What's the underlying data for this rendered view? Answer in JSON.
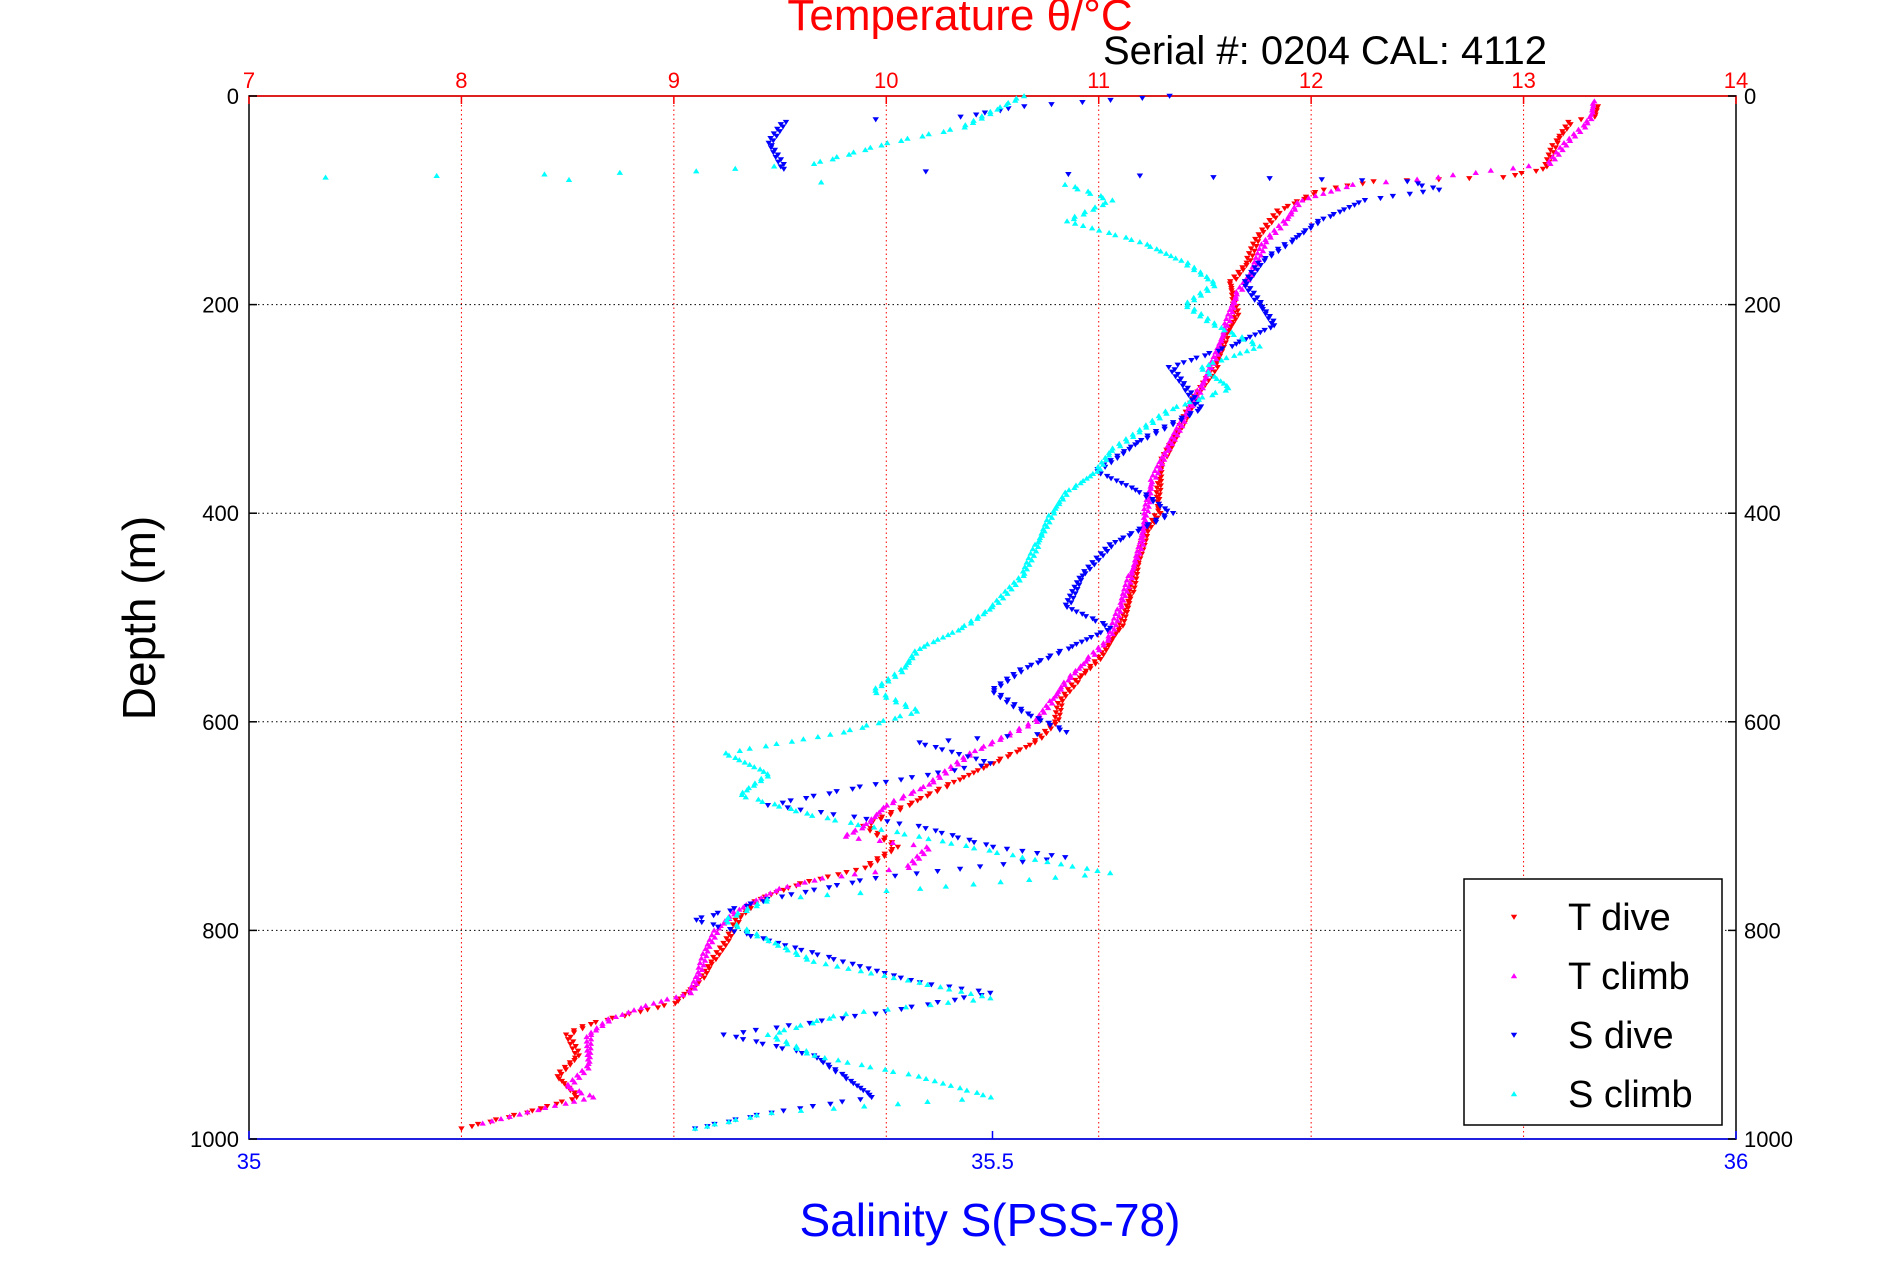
{
  "chart_data": {
    "type": "scatter",
    "title": "Temperature θ/°C",
    "subtitle": "Serial #: 0204  CAL: 4112",
    "ylabel": "Depth (m)",
    "xlabel": "Salinity S(PSS-78)",
    "temperature_axis": {
      "range": [
        7,
        14
      ],
      "ticks": [
        "7",
        "8",
        "9",
        "10",
        "11",
        "12",
        "13",
        "14"
      ],
      "color": "#ff0000",
      "position": "top"
    },
    "salinity_axis": {
      "range": [
        35,
        36
      ],
      "ticks": [
        "35",
        "35.5",
        "36"
      ],
      "color": "#0000ff",
      "position": "bottom"
    },
    "depth_axis": {
      "range": [
        0,
        1000
      ],
      "reversed": true,
      "ticks": [
        "0",
        "200",
        "400",
        "600",
        "800",
        "1000"
      ]
    },
    "grid": true,
    "legend_position": "bottom-right",
    "series": [
      {
        "name": "T dive",
        "axis": "temperature",
        "color": "#ff0000",
        "marker": "triangle-down",
        "points": [
          [
            13.35,
            10
          ],
          [
            13.33,
            20
          ],
          [
            13.22,
            25
          ],
          [
            13.15,
            45
          ],
          [
            13.1,
            70
          ],
          [
            12.9,
            78
          ],
          [
            12.6,
            80
          ],
          [
            12.3,
            82
          ],
          [
            12.05,
            90
          ],
          [
            11.85,
            110
          ],
          [
            11.75,
            135
          ],
          [
            11.7,
            160
          ],
          [
            11.62,
            180
          ],
          [
            11.65,
            210
          ],
          [
            11.6,
            230
          ],
          [
            11.55,
            260
          ],
          [
            11.45,
            290
          ],
          [
            11.38,
            320
          ],
          [
            11.3,
            350
          ],
          [
            11.28,
            380
          ],
          [
            11.28,
            400
          ],
          [
            11.22,
            420
          ],
          [
            11.18,
            450
          ],
          [
            11.15,
            480
          ],
          [
            11.1,
            510
          ],
          [
            11.0,
            540
          ],
          [
            10.9,
            560
          ],
          [
            10.82,
            580
          ],
          [
            10.8,
            600
          ],
          [
            10.7,
            620
          ],
          [
            10.5,
            640
          ],
          [
            10.3,
            660
          ],
          [
            10.1,
            680
          ],
          [
            9.9,
            700
          ],
          [
            10.05,
            720
          ],
          [
            9.9,
            740
          ],
          [
            9.6,
            755
          ],
          [
            9.4,
            770
          ],
          [
            9.3,
            790
          ],
          [
            9.25,
            810
          ],
          [
            9.18,
            830
          ],
          [
            9.12,
            850
          ],
          [
            9.0,
            870
          ],
          [
            8.8,
            880
          ],
          [
            8.6,
            890
          ],
          [
            8.5,
            900
          ],
          [
            8.55,
            920
          ],
          [
            8.45,
            940
          ],
          [
            8.55,
            960
          ],
          [
            8.3,
            975
          ],
          [
            8.0,
            990
          ]
        ]
      },
      {
        "name": "T climb",
        "axis": "temperature",
        "color": "#ff00ff",
        "marker": "triangle-up",
        "points": [
          [
            13.33,
            5
          ],
          [
            13.32,
            20
          ],
          [
            13.28,
            30
          ],
          [
            13.2,
            45
          ],
          [
            13.12,
            65
          ],
          [
            12.5,
            80
          ],
          [
            12.2,
            85
          ],
          [
            11.95,
            100
          ],
          [
            11.88,
            120
          ],
          [
            11.78,
            140
          ],
          [
            11.72,
            170
          ],
          [
            11.65,
            190
          ],
          [
            11.6,
            220
          ],
          [
            11.55,
            250
          ],
          [
            11.48,
            280
          ],
          [
            11.4,
            310
          ],
          [
            11.32,
            340
          ],
          [
            11.25,
            370
          ],
          [
            11.22,
            400
          ],
          [
            11.2,
            430
          ],
          [
            11.15,
            460
          ],
          [
            11.1,
            490
          ],
          [
            11.05,
            520
          ],
          [
            10.95,
            540
          ],
          [
            10.85,
            560
          ],
          [
            10.78,
            580
          ],
          [
            10.7,
            600
          ],
          [
            10.4,
            630
          ],
          [
            10.2,
            660
          ],
          [
            10.0,
            680
          ],
          [
            9.9,
            700
          ],
          [
            9.8,
            710
          ],
          [
            10.2,
            720
          ],
          [
            10.1,
            740
          ],
          [
            9.7,
            750
          ],
          [
            9.5,
            760
          ],
          [
            9.3,
            780
          ],
          [
            9.2,
            800
          ],
          [
            9.15,
            820
          ],
          [
            9.12,
            840
          ],
          [
            9.08,
            860
          ],
          [
            8.9,
            870
          ],
          [
            8.7,
            885
          ],
          [
            8.6,
            900
          ],
          [
            8.6,
            930
          ],
          [
            8.5,
            950
          ],
          [
            8.62,
            960
          ],
          [
            8.4,
            970
          ],
          [
            8.1,
            985
          ]
        ]
      },
      {
        "name": "S dive",
        "axis": "salinity",
        "color": "#0000ff",
        "marker": "triangle-down",
        "points": [
          [
            35.62,
            0
          ],
          [
            35.52,
            10
          ],
          [
            35.48,
            20
          ],
          [
            35.36,
            25
          ],
          [
            35.35,
            45
          ],
          [
            35.36,
            70
          ],
          [
            35.55,
            75
          ],
          [
            35.65,
            78
          ],
          [
            35.72,
            80
          ],
          [
            35.78,
            82
          ],
          [
            35.8,
            90
          ],
          [
            35.75,
            100
          ],
          [
            35.72,
            120
          ],
          [
            35.7,
            140
          ],
          [
            35.68,
            160
          ],
          [
            35.67,
            180
          ],
          [
            35.68,
            200
          ],
          [
            35.69,
            220
          ],
          [
            35.66,
            240
          ],
          [
            35.62,
            260
          ],
          [
            35.63,
            280
          ],
          [
            35.64,
            300
          ],
          [
            35.6,
            330
          ],
          [
            35.57,
            360
          ],
          [
            35.6,
            380
          ],
          [
            35.62,
            400
          ],
          [
            35.58,
            430
          ],
          [
            35.56,
            460
          ],
          [
            35.55,
            490
          ],
          [
            35.58,
            510
          ],
          [
            35.55,
            530
          ],
          [
            35.52,
            550
          ],
          [
            35.5,
            570
          ],
          [
            35.52,
            590
          ],
          [
            35.55,
            610
          ],
          [
            35.45,
            620
          ],
          [
            35.5,
            640
          ],
          [
            35.42,
            660
          ],
          [
            35.35,
            680
          ],
          [
            35.45,
            700
          ],
          [
            35.5,
            720
          ],
          [
            35.55,
            730
          ],
          [
            35.42,
            750
          ],
          [
            35.35,
            770
          ],
          [
            35.3,
            790
          ],
          [
            35.35,
            810
          ],
          [
            35.4,
            830
          ],
          [
            35.45,
            850
          ],
          [
            35.5,
            860
          ],
          [
            35.42,
            880
          ],
          [
            35.32,
            900
          ],
          [
            35.38,
            920
          ],
          [
            35.4,
            940
          ],
          [
            35.42,
            960
          ],
          [
            35.35,
            975
          ],
          [
            35.3,
            990
          ]
        ]
      },
      {
        "name": "S climb",
        "axis": "salinity",
        "color": "#00ffff",
        "marker": "triangle-up",
        "points": [
          [
            35.52,
            0
          ],
          [
            35.5,
            15
          ],
          [
            35.48,
            30
          ],
          [
            35.43,
            45
          ],
          [
            35.38,
            65
          ],
          [
            35.3,
            72
          ],
          [
            35.2,
            75
          ],
          [
            35.05,
            78
          ],
          [
            35.55,
            85
          ],
          [
            35.58,
            100
          ],
          [
            35.55,
            120
          ],
          [
            35.6,
            140
          ],
          [
            35.63,
            160
          ],
          [
            35.65,
            180
          ],
          [
            35.63,
            200
          ],
          [
            35.65,
            220
          ],
          [
            35.68,
            240
          ],
          [
            35.64,
            260
          ],
          [
            35.66,
            280
          ],
          [
            35.62,
            300
          ],
          [
            35.6,
            320
          ],
          [
            35.58,
            340
          ],
          [
            35.57,
            360
          ],
          [
            35.55,
            380
          ],
          [
            35.54,
            400
          ],
          [
            35.53,
            430
          ],
          [
            35.52,
            460
          ],
          [
            35.5,
            490
          ],
          [
            35.48,
            510
          ],
          [
            35.45,
            530
          ],
          [
            35.44,
            550
          ],
          [
            35.42,
            570
          ],
          [
            35.45,
            590
          ],
          [
            35.4,
            610
          ],
          [
            35.32,
            630
          ],
          [
            35.35,
            650
          ],
          [
            35.33,
            670
          ],
          [
            35.38,
            690
          ],
          [
            35.45,
            710
          ],
          [
            35.52,
            730
          ],
          [
            35.58,
            745
          ],
          [
            35.45,
            760
          ],
          [
            35.35,
            770
          ],
          [
            35.32,
            790
          ],
          [
            35.35,
            810
          ],
          [
            35.38,
            830
          ],
          [
            35.45,
            850
          ],
          [
            35.5,
            865
          ],
          [
            35.4,
            880
          ],
          [
            35.35,
            900
          ],
          [
            35.38,
            920
          ],
          [
            35.45,
            940
          ],
          [
            35.5,
            960
          ],
          [
            35.35,
            975
          ],
          [
            35.3,
            990
          ]
        ]
      }
    ]
  }
}
